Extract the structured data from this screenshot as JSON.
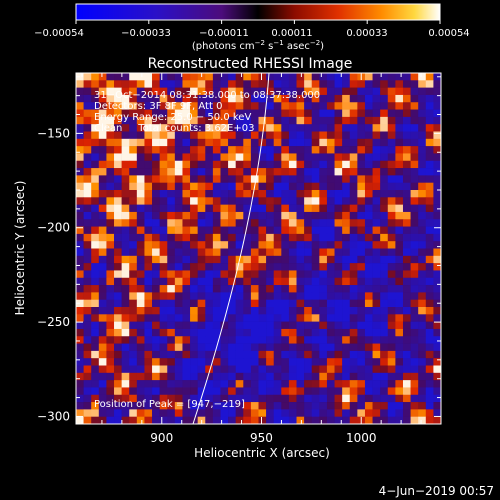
{
  "colorbar": {
    "ticks": [
      "−0.00054",
      "−0.00033",
      "−0.00011",
      "0.00011",
      "0.00033",
      "0.00054"
    ],
    "unit_main": "(photons cm",
    "unit_e1": "−2",
    "unit_s": " s",
    "unit_e2": "−1",
    "unit_asec": " asec",
    "unit_e3": "−2",
    "unit_close": ")"
  },
  "plot": {
    "title": "Reconstructed RHESSI Image",
    "xlabel": "Heliocentric X (arcsec)",
    "ylabel": "Heliocentric Y (arcsec)",
    "xticks": [
      {
        "label": "900",
        "value": 900
      },
      {
        "label": "950",
        "value": 950
      },
      {
        "label": "1000",
        "value": 1000
      }
    ],
    "yticks": [
      {
        "label": "−150",
        "value": -150
      },
      {
        "label": "−200",
        "value": -200
      },
      {
        "label": "−250",
        "value": -250
      },
      {
        "label": "−300",
        "value": -300
      }
    ],
    "xrange": [
      857,
      1040
    ],
    "yrange": [
      -304,
      -118
    ],
    "annotations": [
      "31−Oct−2014 08:31:38.000 to 08:37:38.000",
      "Detectors: 3F 8F 9F, Att 0",
      "Energy Range: 25.0 − 50.0 keV",
      "Clean     Total counts: 3.62E+03"
    ],
    "peak_label": "Position of Peak = [947,−219]"
  },
  "footer": {
    "date": "4−Jun−2019 00:57"
  },
  "colors": {
    "background": "#000000",
    "foreground": "#ffffff"
  }
}
